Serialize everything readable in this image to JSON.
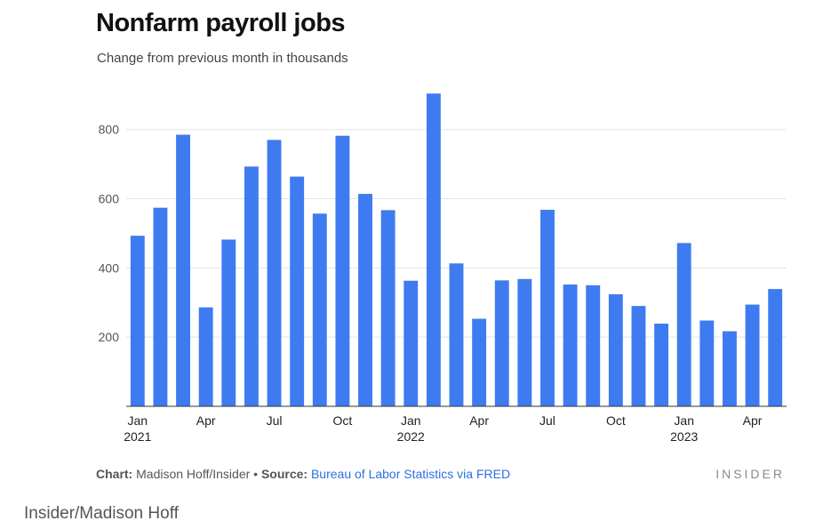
{
  "chart_data": {
    "type": "bar",
    "title": "Nonfarm payroll jobs",
    "subtitle": "Change from previous month in thousands",
    "bar_color": "#3f7bf0",
    "grid": true,
    "ylim": [
      0,
      920
    ],
    "yticks": [
      200,
      400,
      600,
      800
    ],
    "categories": [
      "Jan 2021",
      "Feb 2021",
      "Mar 2021",
      "Apr 2021",
      "May 2021",
      "Jun 2021",
      "Jul 2021",
      "Aug 2021",
      "Sep 2021",
      "Oct 2021",
      "Nov 2021",
      "Dec 2021",
      "Jan 2022",
      "Feb 2022",
      "Mar 2022",
      "Apr 2022",
      "May 2022",
      "Jun 2022",
      "Jul 2022",
      "Aug 2022",
      "Sep 2022",
      "Oct 2022",
      "Nov 2022",
      "Dec 2022",
      "Jan 2023",
      "Feb 2023",
      "Mar 2023",
      "Apr 2023",
      "May 2023"
    ],
    "values": [
      493,
      574,
      785,
      286,
      482,
      693,
      770,
      664,
      557,
      782,
      614,
      567,
      363,
      904,
      413,
      253,
      364,
      368,
      568,
      352,
      350,
      324,
      290,
      239,
      472,
      248,
      217,
      294,
      339
    ],
    "xtick_labels": [
      {
        "index": 0,
        "month": "Jan",
        "year": "2021"
      },
      {
        "index": 3,
        "month": "Apr",
        "year": ""
      },
      {
        "index": 6,
        "month": "Jul",
        "year": ""
      },
      {
        "index": 9,
        "month": "Oct",
        "year": ""
      },
      {
        "index": 12,
        "month": "Jan",
        "year": "2022"
      },
      {
        "index": 15,
        "month": "Apr",
        "year": ""
      },
      {
        "index": 18,
        "month": "Jul",
        "year": ""
      },
      {
        "index": 21,
        "month": "Oct",
        "year": ""
      },
      {
        "index": 24,
        "month": "Jan",
        "year": "2023"
      },
      {
        "index": 27,
        "month": "Apr",
        "year": ""
      }
    ]
  },
  "footer": {
    "chart_label": "Chart:",
    "chart_author": " Madison Hoff/Insider • ",
    "source_label": "Source:",
    "source_text": " Bureau of Labor Statistics via FRED"
  },
  "brand": "INSIDER",
  "caption": "Insider/Madison Hoff"
}
